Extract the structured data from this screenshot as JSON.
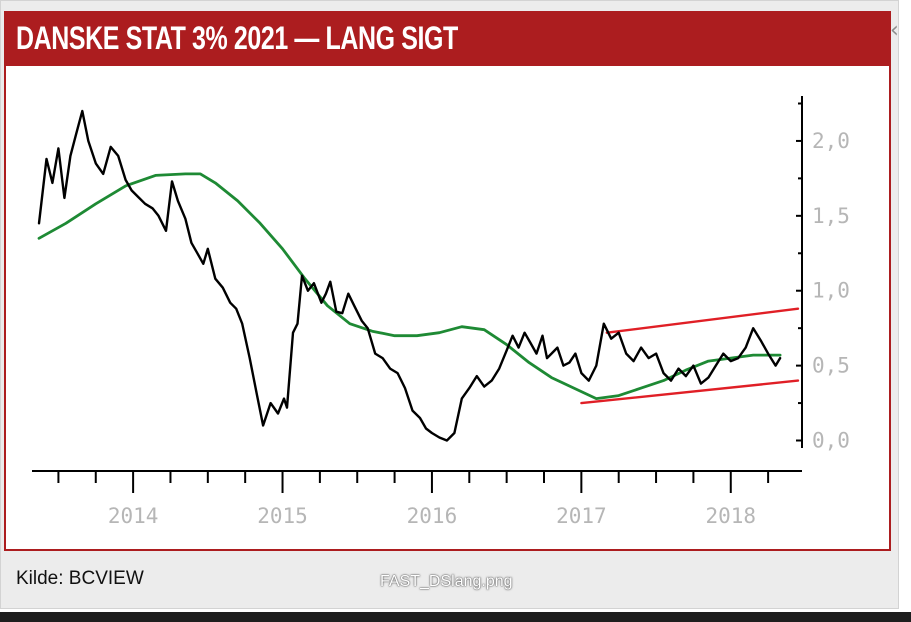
{
  "header": {
    "title": "DANSKE STAT 3% 2021 — LANG SIGT"
  },
  "side_icon": "‹",
  "footer": {
    "source": "Kilde: BCVIEW",
    "filename": "FAST_DSlang.png"
  },
  "colors": {
    "header_bg": "#ac1d1f",
    "price_line": "#000000",
    "moving_average": "#1e8a34",
    "channel": "#e01f26"
  },
  "chart_data": {
    "type": "line",
    "title": "DANSKE STAT 3% 2021 — LANG SIGT",
    "xlabel": "",
    "ylabel": "",
    "x_range": [
      2013.35,
      2018.45
    ],
    "ylim": [
      -0.05,
      2.3
    ],
    "y_axis_position": "right",
    "grid": false,
    "x_ticks": [
      "2014",
      "2015",
      "2016",
      "2017",
      "2018"
    ],
    "y_ticks": [
      "0,0",
      "0,5",
      "1,0",
      "1,5",
      "2,0"
    ],
    "series": [
      {
        "style": "price",
        "x": [
          2013.37,
          2013.42,
          2013.46,
          2013.5,
          2013.54,
          2013.58,
          2013.62,
          2013.66,
          2013.7,
          2013.75,
          2013.8,
          2013.85,
          2013.9,
          2013.95,
          2013.99,
          2014.04,
          2014.08,
          2014.13,
          2014.17,
          2014.22,
          2014.26,
          2014.3,
          2014.35,
          2014.39,
          2014.43,
          2014.47,
          2014.5,
          2014.55,
          2014.6,
          2014.65,
          2014.69,
          2014.73,
          2014.78,
          2014.83,
          2014.87,
          2014.92,
          2014.97,
          2015.01,
          2015.03,
          2015.07,
          2015.1,
          2015.13,
          2015.17,
          2015.21,
          2015.26,
          2015.29,
          2015.32,
          2015.36,
          2015.4,
          2015.44,
          2015.48,
          2015.53,
          2015.57,
          2015.62,
          2015.67,
          2015.72,
          2015.77,
          2015.82,
          2015.87,
          2015.92,
          2015.96,
          2016.0,
          2016.05,
          2016.1,
          2016.15,
          2016.2,
          2016.25,
          2016.3,
          2016.35,
          2016.4,
          2016.45,
          2016.5,
          2016.54,
          2016.58,
          2016.62,
          2016.66,
          2016.7,
          2016.74,
          2016.77,
          2016.8,
          2016.84,
          2016.88,
          2016.92,
          2016.96,
          2017.0,
          2017.05,
          2017.1,
          2017.15,
          2017.2,
          2017.25,
          2017.3,
          2017.35,
          2017.4,
          2017.45,
          2017.5,
          2017.55,
          2017.6,
          2017.65,
          2017.7,
          2017.75,
          2017.8,
          2017.85,
          2017.9,
          2017.95,
          2018.0,
          2018.05,
          2018.1,
          2018.15,
          2018.2,
          2018.25,
          2018.3,
          2018.33
        ],
        "y": [
          1.45,
          1.88,
          1.72,
          1.95,
          1.62,
          1.9,
          2.05,
          2.2,
          2.0,
          1.85,
          1.78,
          1.96,
          1.9,
          1.74,
          1.67,
          1.62,
          1.58,
          1.55,
          1.5,
          1.4,
          1.73,
          1.6,
          1.48,
          1.32,
          1.25,
          1.18,
          1.28,
          1.08,
          1.02,
          0.92,
          0.88,
          0.78,
          0.55,
          0.3,
          0.1,
          0.25,
          0.18,
          0.28,
          0.22,
          0.72,
          0.78,
          1.1,
          1.0,
          1.05,
          0.92,
          0.98,
          1.06,
          0.86,
          0.85,
          0.98,
          0.9,
          0.8,
          0.75,
          0.58,
          0.55,
          0.48,
          0.45,
          0.35,
          0.2,
          0.15,
          0.08,
          0.05,
          0.02,
          0.0,
          0.05,
          0.28,
          0.35,
          0.43,
          0.36,
          0.4,
          0.48,
          0.6,
          0.7,
          0.62,
          0.72,
          0.65,
          0.58,
          0.7,
          0.55,
          0.58,
          0.62,
          0.5,
          0.52,
          0.58,
          0.45,
          0.4,
          0.5,
          0.78,
          0.68,
          0.72,
          0.58,
          0.53,
          0.62,
          0.55,
          0.58,
          0.45,
          0.4,
          0.48,
          0.43,
          0.5,
          0.38,
          0.42,
          0.5,
          0.58,
          0.53,
          0.55,
          0.62,
          0.75,
          0.67,
          0.58,
          0.5,
          0.55
        ]
      },
      {
        "style": "moving_average",
        "x": [
          2013.37,
          2013.55,
          2013.75,
          2013.95,
          2014.15,
          2014.35,
          2014.45,
          2014.55,
          2014.7,
          2014.85,
          2015.0,
          2015.15,
          2015.3,
          2015.45,
          2015.6,
          2015.75,
          2015.9,
          2016.05,
          2016.2,
          2016.35,
          2016.5,
          2016.65,
          2016.8,
          2016.95,
          2017.1,
          2017.25,
          2017.4,
          2017.55,
          2017.7,
          2017.85,
          2018.0,
          2018.15,
          2018.3,
          2018.33
        ],
        "y": [
          1.35,
          1.45,
          1.58,
          1.7,
          1.77,
          1.78,
          1.78,
          1.72,
          1.6,
          1.45,
          1.28,
          1.08,
          0.9,
          0.78,
          0.73,
          0.7,
          0.7,
          0.72,
          0.76,
          0.74,
          0.64,
          0.52,
          0.42,
          0.35,
          0.28,
          0.3,
          0.35,
          0.4,
          0.47,
          0.53,
          0.55,
          0.57,
          0.57,
          0.57
        ]
      },
      {
        "style": "channel_upper",
        "x": [
          2017.17,
          2018.45
        ],
        "y": [
          0.72,
          0.88
        ]
      },
      {
        "style": "channel_lower",
        "x": [
          2017.0,
          2018.45
        ],
        "y": [
          0.25,
          0.4
        ]
      }
    ]
  }
}
